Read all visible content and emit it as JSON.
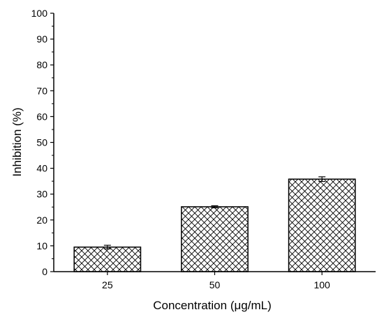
{
  "chart_data": {
    "type": "bar",
    "title": "",
    "xlabel": "Concentration (μg/mL)",
    "ylabel": "Inhibition (%)",
    "categories": [
      "25",
      "50",
      "100"
    ],
    "values": [
      9.5,
      25.1,
      35.8
    ],
    "errors": [
      0.7,
      0.4,
      0.9
    ],
    "ylim": [
      0,
      100
    ],
    "yticks": [
      0,
      10,
      20,
      30,
      40,
      50,
      60,
      70,
      80,
      90,
      100
    ],
    "grid": false,
    "legend": "none",
    "bar_fill": "crosshatch",
    "colors": {
      "bar_edge": "#000000",
      "hatch": "#000000",
      "background": "#ffffff"
    }
  }
}
